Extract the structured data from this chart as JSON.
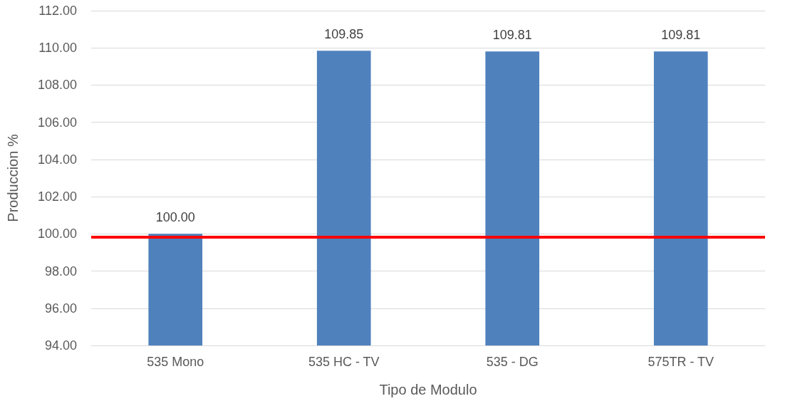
{
  "chart_data": {
    "type": "bar",
    "xlabel": "Tipo de Modulo",
    "ylabel": "Produccion %",
    "categories": [
      "535 Mono",
      "535 HC - TV",
      "535 - DG",
      "575TR - TV"
    ],
    "values": [
      100.0,
      109.85,
      109.81,
      109.81
    ],
    "color": "#4f81bd",
    "ylim": [
      94,
      112
    ],
    "yticks": [
      {
        "value": 94,
        "label": "94.00"
      },
      {
        "value": 96,
        "label": "96.00"
      },
      {
        "value": 98,
        "label": "98.00"
      },
      {
        "value": 100,
        "label": "100.00"
      },
      {
        "value": 102,
        "label": "102.00"
      },
      {
        "value": 104,
        "label": "104.00"
      },
      {
        "value": 106,
        "label": "106.00"
      },
      {
        "value": 108,
        "label": "108.00"
      },
      {
        "value": 110,
        "label": "110.00"
      },
      {
        "value": 112,
        "label": "112.00"
      }
    ],
    "value_labels": [
      "100.00",
      "109.85",
      "109.81",
      "109.81"
    ],
    "ref_lines": [
      {
        "axis": "y",
        "value": 99.85,
        "color": "#ff0000",
        "line_style": "solid"
      }
    ],
    "grid": "y"
  }
}
